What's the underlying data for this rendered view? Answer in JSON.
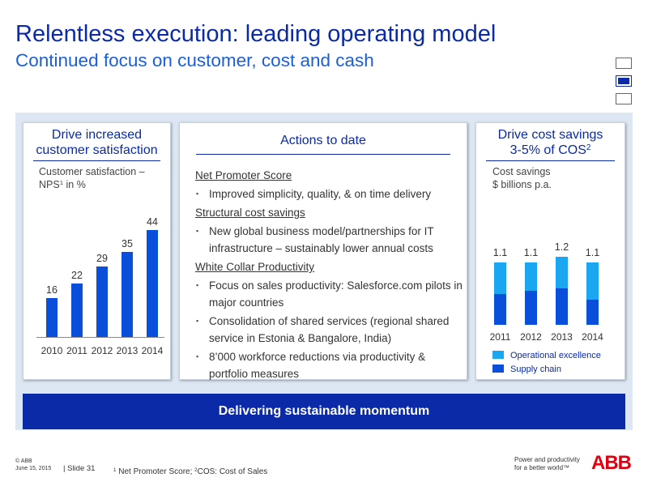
{
  "header": {
    "title": "Relentless execution: leading operating model",
    "subtitle": "Continued focus on customer, cost and cash"
  },
  "panels": {
    "left": {
      "heading": "Drive increased customer satisfaction",
      "chart_label_a": "Customer satisfaction –",
      "chart_label_b": "NPS",
      "chart_label_sup": "1",
      "chart_label_c": " in %"
    },
    "middle": {
      "heading": "Actions to date",
      "sections": [
        {
          "head": "Net Promoter Score",
          "items": [
            "Improved simplicity, quality, & on time delivery"
          ]
        },
        {
          "head": "Structural cost savings",
          "items": [
            "New global business model/partnerships for IT infrastructure – sustainably lower annual costs"
          ]
        },
        {
          "head": "White Collar Productivity",
          "items": [
            "Focus on sales productivity: Salesforce.com pilots in major countries",
            "Consolidation of shared services (regional shared service in Estonia & Bangalore, India)",
            "8’000 workforce reductions via productivity & portfolio measures"
          ]
        }
      ]
    },
    "right": {
      "heading_a": "Drive cost savings",
      "heading_b": "3-5% of COS",
      "heading_sup": "2",
      "chart_label": "Cost savings",
      "chart_label_b": "$ billions p.a."
    }
  },
  "chart_data": [
    {
      "type": "bar",
      "categories": [
        "2010",
        "2011",
        "2012",
        "2013",
        "2014"
      ],
      "values": [
        16,
        22,
        29,
        35,
        44
      ],
      "ylim": [
        0,
        50
      ],
      "color": "#0a4fdc"
    },
    {
      "type": "bar",
      "stacked": true,
      "categories": [
        "2011",
        "2012",
        "2013",
        "2014"
      ],
      "totals": [
        "1.1",
        "1.1",
        "1.2",
        "1.1"
      ],
      "series": [
        {
          "name": "Supply chain",
          "values": [
            0.55,
            0.6,
            0.65,
            0.45
          ],
          "color": "#0a4fdc"
        },
        {
          "name": "Operational excellence",
          "values": [
            0.55,
            0.5,
            0.55,
            0.65
          ],
          "color": "#1aa6f0"
        }
      ],
      "ylim": [
        0,
        1.5
      ]
    }
  ],
  "legend": {
    "operational": "Operational excellence",
    "supply": "Supply chain"
  },
  "banner": "Delivering sustainable momentum",
  "footer": {
    "copyright": "© ABB",
    "date": "June 15, 2015",
    "slide": "| Slide 31",
    "note_sup1": "1",
    "note_a": " Net Promoter Score; ",
    "note_sup2": "2",
    "note_b": "COS: Cost of Sales",
    "tagline_a": "Power and productivity",
    "tagline_b": "for a better world™",
    "logo": "ABB"
  }
}
